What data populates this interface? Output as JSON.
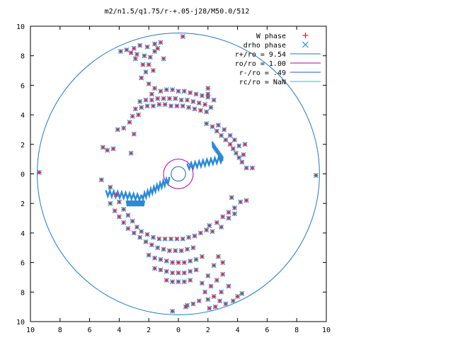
{
  "chart_data": {
    "type": "scatter",
    "title": "m2/n1.5/q1.75/r-+.05-j28/M50.0/512",
    "xlabel": "",
    "ylabel": "",
    "xlim": [
      -10,
      10
    ],
    "ylim": [
      -10,
      10
    ],
    "grid": false,
    "legend_position": "top-right",
    "x_ticks": [
      {
        "value": -10,
        "label": "10"
      },
      {
        "value": -8,
        "label": "8"
      },
      {
        "value": -6,
        "label": "6"
      },
      {
        "value": -4,
        "label": "4"
      },
      {
        "value": -2,
        "label": "2"
      },
      {
        "value": 0,
        "label": "0"
      },
      {
        "value": 2,
        "label": "2"
      },
      {
        "value": 4,
        "label": "4"
      },
      {
        "value": 6,
        "label": "6"
      },
      {
        "value": 8,
        "label": "8"
      },
      {
        "value": 10,
        "label": "10"
      }
    ],
    "y_ticks": [
      {
        "value": 10,
        "label": "10"
      },
      {
        "value": 8,
        "label": "8"
      },
      {
        "value": 6,
        "label": "6"
      },
      {
        "value": 4,
        "label": "4"
      },
      {
        "value": 2,
        "label": "2"
      },
      {
        "value": 0,
        "label": "0"
      },
      {
        "value": -2,
        "label": "2"
      },
      {
        "value": -4,
        "label": "4"
      },
      {
        "value": -6,
        "label": "6"
      },
      {
        "value": -8,
        "label": "8"
      },
      {
        "value": -10,
        "label": "10"
      }
    ],
    "circles": [
      {
        "name": "r+/ro = 9.54",
        "radius": 9.54,
        "color": "#1f78c8"
      },
      {
        "name": "ro/ro = 1.00",
        "radius": 1.0,
        "color": "#b000b0"
      },
      {
        "name": "r-/ro = .49",
        "radius": 0.49,
        "color": "#1f5fd0"
      },
      {
        "name": "rc/ro = NaN",
        "radius": null,
        "color": "#20c0d0"
      }
    ],
    "series": [
      {
        "name": "W phase",
        "marker": "plus",
        "color": "#e8202a"
      },
      {
        "name": "drho phase",
        "marker": "cross",
        "color": "#2a8ad8"
      }
    ],
    "points": [
      [
        -9.4,
        0.1
      ],
      [
        9.3,
        -0.1
      ],
      [
        0.3,
        9.3
      ],
      [
        -1.6,
        8.8
      ],
      [
        -1.2,
        8.9
      ],
      [
        -1.6,
        8.3
      ],
      [
        -2.1,
        8.6
      ],
      [
        -1.9,
        7.9
      ],
      [
        -2.4,
        7.4
      ],
      [
        -2.2,
        6.9
      ],
      [
        -3.5,
        8.4
      ],
      [
        -3.9,
        8.3
      ],
      [
        -3.0,
        8.5
      ],
      [
        -2.8,
        8.1
      ],
      [
        -2.6,
        8.7
      ],
      [
        -2.0,
        7.4
      ],
      [
        -1.7,
        7.0
      ],
      [
        -2.5,
        6.5
      ],
      [
        -2.9,
        7.8
      ],
      [
        -3.2,
        8.2
      ],
      [
        -2.3,
        8.0
      ],
      [
        -1.4,
        8.5
      ],
      [
        -1.0,
        7.8
      ],
      [
        -2.0,
        6.1
      ],
      [
        -1.6,
        5.8
      ],
      [
        -1.8,
        5.4
      ],
      [
        -1.2,
        5.6
      ],
      [
        -0.8,
        5.7
      ],
      [
        -0.4,
        5.7
      ],
      [
        0.0,
        5.6
      ],
      [
        0.4,
        5.6
      ],
      [
        0.8,
        5.5
      ],
      [
        1.2,
        5.4
      ],
      [
        1.6,
        5.3
      ],
      [
        2.0,
        5.2
      ],
      [
        2.4,
        5.0
      ],
      [
        -2.6,
        4.9
      ],
      [
        -2.2,
        5.0
      ],
      [
        -1.8,
        5.0
      ],
      [
        -1.4,
        5.1
      ],
      [
        -1.0,
        5.1
      ],
      [
        -0.6,
        5.1
      ],
      [
        -0.2,
        5.1
      ],
      [
        0.2,
        5.0
      ],
      [
        0.6,
        5.0
      ],
      [
        1.0,
        4.9
      ],
      [
        1.4,
        4.8
      ],
      [
        1.8,
        4.7
      ],
      [
        2.2,
        4.5
      ],
      [
        -2.9,
        4.4
      ],
      [
        -2.5,
        4.5
      ],
      [
        -2.1,
        4.6
      ],
      [
        -1.7,
        4.6
      ],
      [
        -1.3,
        4.7
      ],
      [
        -0.9,
        4.7
      ],
      [
        -0.5,
        4.6
      ],
      [
        -0.1,
        4.6
      ],
      [
        0.3,
        4.6
      ],
      [
        0.7,
        4.5
      ],
      [
        1.1,
        4.4
      ],
      [
        1.5,
        4.3
      ],
      [
        1.9,
        4.2
      ],
      [
        -3.1,
        3.9
      ],
      [
        -2.7,
        4.0
      ],
      [
        -3.7,
        3.1
      ],
      [
        -3.3,
        3.5
      ],
      [
        -4.1,
        3.0
      ],
      [
        -3.0,
        2.7
      ],
      [
        -4.4,
        1.7
      ],
      [
        -5.1,
        1.8
      ],
      [
        -4.8,
        1.6
      ],
      [
        -3.2,
        1.4
      ],
      [
        -5.2,
        -0.4
      ],
      [
        -4.6,
        -0.9
      ],
      [
        -4.2,
        -1.4
      ],
      [
        -4.0,
        -1.9
      ],
      [
        -3.7,
        -2.4
      ],
      [
        -3.4,
        -2.8
      ],
      [
        -3.1,
        -3.2
      ],
      [
        -2.8,
        -3.6
      ],
      [
        -2.5,
        -3.9
      ],
      [
        -2.1,
        -4.1
      ],
      [
        -1.7,
        -4.3
      ],
      [
        -4.6,
        -2.0
      ],
      [
        -4.3,
        -2.5
      ],
      [
        -4.0,
        -2.9
      ],
      [
        -3.7,
        -3.3
      ],
      [
        -3.4,
        -3.7
      ],
      [
        -3.0,
        -4.0
      ],
      [
        -2.6,
        -4.3
      ],
      [
        -2.2,
        -4.6
      ],
      [
        -1.8,
        -4.8
      ],
      [
        -1.4,
        -5.0
      ],
      [
        -1.0,
        -5.1
      ],
      [
        -0.6,
        -5.2
      ],
      [
        -0.2,
        -5.2
      ],
      [
        0.2,
        -5.2
      ],
      [
        0.6,
        -5.1
      ],
      [
        1.0,
        -5.0
      ],
      [
        -1.3,
        -4.4
      ],
      [
        -0.9,
        -4.4
      ],
      [
        -0.5,
        -4.4
      ],
      [
        -0.1,
        -4.4
      ],
      [
        0.3,
        -4.4
      ],
      [
        0.7,
        -4.3
      ],
      [
        1.1,
        -4.2
      ],
      [
        1.5,
        -4.0
      ],
      [
        1.9,
        -3.8
      ],
      [
        -2.0,
        -5.5
      ],
      [
        -1.6,
        -5.7
      ],
      [
        -1.2,
        -5.8
      ],
      [
        -0.8,
        -5.9
      ],
      [
        -0.4,
        -6.0
      ],
      [
        0.0,
        -6.0
      ],
      [
        0.4,
        -6.0
      ],
      [
        0.8,
        -5.9
      ],
      [
        1.2,
        -5.8
      ],
      [
        1.6,
        -5.6
      ],
      [
        -1.6,
        -6.4
      ],
      [
        -1.2,
        -6.5
      ],
      [
        -0.8,
        -6.6
      ],
      [
        -0.4,
        -6.7
      ],
      [
        0.0,
        -6.7
      ],
      [
        0.4,
        -6.7
      ],
      [
        0.8,
        -6.6
      ],
      [
        1.2,
        -6.5
      ],
      [
        -0.8,
        -7.2
      ],
      [
        -0.4,
        -7.3
      ],
      [
        0.0,
        -7.3
      ],
      [
        0.4,
        -7.3
      ],
      [
        0.8,
        -7.2
      ],
      [
        0.6,
        -8.9
      ],
      [
        1.0,
        -8.8
      ],
      [
        1.4,
        -8.6
      ],
      [
        2.0,
        -8.5
      ],
      [
        2.4,
        -8.3
      ],
      [
        2.8,
        -8.6
      ],
      [
        3.2,
        -8.8
      ],
      [
        1.8,
        -8.0
      ],
      [
        2.2,
        -7.6
      ],
      [
        2.6,
        -7.2
      ],
      [
        3.0,
        -6.8
      ],
      [
        2.0,
        -6.9
      ],
      [
        1.6,
        -7.4
      ],
      [
        3.4,
        -7.6
      ],
      [
        3.0,
        -6.0
      ],
      [
        2.7,
        -5.6
      ],
      [
        2.4,
        -6.2
      ],
      [
        2.9,
        -8.0
      ],
      [
        2.5,
        -9.0
      ],
      [
        2.1,
        -9.1
      ],
      [
        0.5,
        -9.0
      ],
      [
        -0.4,
        -9.3
      ],
      [
        4.3,
        -8.1
      ],
      [
        4.0,
        -8.3
      ],
      [
        3.7,
        -8.6
      ],
      [
        2.1,
        -3.5
      ],
      [
        2.3,
        -3.9
      ],
      [
        2.6,
        -3.3
      ],
      [
        3.0,
        -2.9
      ],
      [
        3.4,
        -2.6
      ],
      [
        3.8,
        -2.3
      ],
      [
        4.2,
        -1.9
      ],
      [
        4.6,
        -1.8
      ],
      [
        3.6,
        -1.6
      ],
      [
        3.8,
        -2.7
      ],
      [
        3.4,
        -3.0
      ],
      [
        2.9,
        -3.6
      ],
      [
        4.6,
        0.4
      ],
      [
        5.0,
        0.4
      ],
      [
        4.3,
        0.8
      ],
      [
        4.1,
        1.1
      ],
      [
        3.9,
        1.4
      ],
      [
        3.7,
        1.7
      ],
      [
        3.5,
        2.0
      ],
      [
        3.2,
        2.3
      ],
      [
        2.9,
        2.6
      ],
      [
        2.6,
        2.9
      ],
      [
        2.3,
        3.2
      ],
      [
        1.9,
        3.4
      ],
      [
        4.4,
        1.3
      ],
      [
        4.1,
        1.9
      ],
      [
        3.8,
        2.3
      ],
      [
        3.5,
        2.6
      ],
      [
        3.1,
        3.0
      ],
      [
        2.7,
        3.3
      ],
      [
        4.5,
        2.0
      ],
      [
        2.0,
        5.4
      ],
      [
        2.0,
        5.8
      ]
    ],
    "line_segments": [
      [
        [
          -4.9,
          -1.3
        ],
        [
          -2.5,
          -1.6
        ]
      ],
      [
        [
          -2.5,
          -1.6
        ],
        [
          -0.6,
          -0.4
        ]
      ],
      [
        [
          0.6,
          0.5
        ],
        [
          3.0,
          1.0
        ]
      ],
      [
        [
          3.0,
          1.0
        ],
        [
          2.3,
          2.0
        ]
      ],
      [
        [
          -2.3,
          -2.0
        ],
        [
          -3.5,
          -2.0
        ]
      ]
    ]
  }
}
